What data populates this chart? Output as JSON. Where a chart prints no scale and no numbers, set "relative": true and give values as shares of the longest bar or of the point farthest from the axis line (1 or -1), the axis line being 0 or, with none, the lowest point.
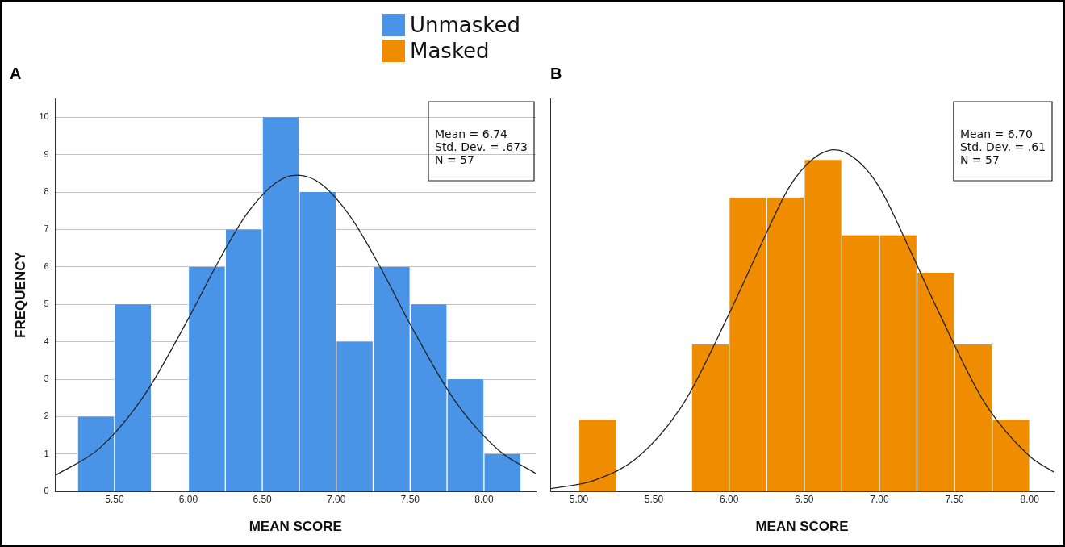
{
  "chart_data": [
    {
      "type": "histogram",
      "title": "A",
      "xlabel": "MEAN SCORE",
      "ylabel": "FREQUENCY",
      "legend": "top",
      "grid": "y",
      "bins": [
        5.25,
        5.5,
        5.75,
        6.0,
        6.25,
        6.5,
        6.75,
        7.0,
        7.25,
        7.5,
        7.75,
        8.0,
        8.25
      ],
      "series": [
        {
          "name": "Unmasked",
          "color": "#4a94e8",
          "values": [
            2,
            5,
            0,
            6,
            7,
            10,
            8,
            4,
            6,
            5,
            3,
            1
          ]
        },
        {
          "type": "line",
          "color": "#222222",
          "x": [
            5.1,
            5.4,
            5.7,
            6.0,
            6.2,
            6.4,
            6.6,
            6.74,
            6.9,
            7.1,
            7.3,
            7.5,
            7.8,
            8.1,
            8.35
          ],
          "values": [
            0.43,
            1.16,
            2.56,
            4.62,
            6.12,
            7.44,
            8.27,
            8.45,
            8.21,
            7.32,
            5.98,
            4.47,
            2.44,
            1.1,
            0.48
          ]
        }
      ],
      "xlim": [
        5.1,
        8.35
      ],
      "xticks": [
        {
          "value": 5.5,
          "label": "5.50"
        },
        {
          "value": 6.0,
          "label": "6.00"
        },
        {
          "value": 6.5,
          "label": "6.50"
        },
        {
          "value": 7.0,
          "label": "7.00"
        },
        {
          "value": 7.5,
          "label": "7.50"
        },
        {
          "value": 8.0,
          "label": "8.00"
        }
      ],
      "ylim": [
        0,
        10.5
      ],
      "yticks": [
        0,
        1,
        2,
        3,
        4,
        5,
        6,
        7,
        8,
        9,
        10
      ],
      "annotations": [
        "Mean = 6.74",
        "Std. Dev. = .673",
        "N = 57"
      ]
    },
    {
      "type": "histogram",
      "title": "B",
      "xlabel": "MEAN SCORE",
      "legend": "top",
      "relative": true,
      "bins": [
        5.0,
        5.25,
        5.5,
        5.75,
        6.0,
        6.25,
        6.5,
        6.75,
        7.0,
        7.25,
        7.5,
        7.75,
        8.0
      ],
      "series": [
        {
          "name": "Masked",
          "color": "#f08c00",
          "values": [
            0.21,
            0,
            0,
            0.43,
            0.86,
            0.86,
            0.97,
            0.75,
            0.75,
            0.64,
            0.43,
            0.21
          ]
        },
        {
          "type": "line",
          "color": "#222222",
          "x": [
            4.81,
            5.1,
            5.4,
            5.7,
            6.0,
            6.2,
            6.4,
            6.55,
            6.7,
            6.85,
            7.0,
            7.2,
            7.4,
            7.7,
            8.0,
            8.16
          ],
          "values": [
            0.008,
            0.032,
            0.103,
            0.26,
            0.52,
            0.71,
            0.89,
            0.97,
            1,
            0.97,
            0.89,
            0.71,
            0.52,
            0.26,
            0.103,
            0.057
          ]
        }
      ],
      "xlim": [
        4.81,
        8.16
      ],
      "xticks": [
        {
          "value": 5.0,
          "label": "5.00"
        },
        {
          "value": 5.5,
          "label": "5.50"
        },
        {
          "value": 6.0,
          "label": "6.00"
        },
        {
          "value": 6.5,
          "label": "6.50"
        },
        {
          "value": 7.0,
          "label": "7.00"
        },
        {
          "value": 7.5,
          "label": "7.50"
        },
        {
          "value": 8.0,
          "label": "8.00"
        }
      ],
      "annotations": [
        "Mean = 6.70",
        "Std. Dev. = .61",
        "N = 57"
      ]
    }
  ]
}
